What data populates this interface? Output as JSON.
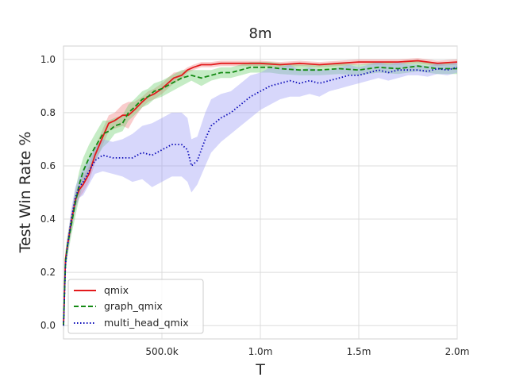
{
  "chart_data": {
    "type": "line",
    "title": "8m",
    "xlabel": "T",
    "ylabel": "Test Win Rate %",
    "xlim": [
      0,
      2000000
    ],
    "ylim": [
      -0.05,
      1.05
    ],
    "x_ticks": [
      {
        "value": 500000,
        "label": "500.0k"
      },
      {
        "value": 1000000,
        "label": "1.0m"
      },
      {
        "value": 1500000,
        "label": "1.5m"
      },
      {
        "value": 2000000,
        "label": "2.0m"
      }
    ],
    "y_ticks": [
      {
        "value": 0.0,
        "label": "0.0"
      },
      {
        "value": 0.2,
        "label": "0.2"
      },
      {
        "value": 0.4,
        "label": "0.4"
      },
      {
        "value": 0.6,
        "label": "0.6"
      },
      {
        "value": 0.8,
        "label": "0.8"
      },
      {
        "value": 1.0,
        "label": "1.0"
      }
    ],
    "grid": true,
    "legend_position": "lower-left",
    "series": [
      {
        "name": "qmix",
        "color": "#e31a1c",
        "dash": "solid",
        "band_color": "#f08080",
        "points": [
          [
            0,
            0.0
          ],
          [
            10000,
            0.25
          ],
          [
            20000,
            0.3
          ],
          [
            40000,
            0.39
          ],
          [
            60000,
            0.47
          ],
          [
            80000,
            0.51
          ],
          [
            100000,
            0.53
          ],
          [
            130000,
            0.57
          ],
          [
            160000,
            0.64
          ],
          [
            200000,
            0.71
          ],
          [
            230000,
            0.76
          ],
          [
            260000,
            0.77
          ],
          [
            300000,
            0.79
          ],
          [
            330000,
            0.79
          ],
          [
            360000,
            0.81
          ],
          [
            400000,
            0.84
          ],
          [
            430000,
            0.86
          ],
          [
            460000,
            0.87
          ],
          [
            500000,
            0.89
          ],
          [
            530000,
            0.91
          ],
          [
            560000,
            0.93
          ],
          [
            600000,
            0.94
          ],
          [
            630000,
            0.96
          ],
          [
            660000,
            0.97
          ],
          [
            700000,
            0.98
          ],
          [
            750000,
            0.98
          ],
          [
            800000,
            0.985
          ],
          [
            900000,
            0.985
          ],
          [
            1000000,
            0.985
          ],
          [
            1100000,
            0.98
          ],
          [
            1200000,
            0.985
          ],
          [
            1300000,
            0.98
          ],
          [
            1400000,
            0.985
          ],
          [
            1500000,
            0.99
          ],
          [
            1600000,
            0.99
          ],
          [
            1700000,
            0.99
          ],
          [
            1800000,
            0.995
          ],
          [
            1900000,
            0.985
          ],
          [
            2000000,
            0.99
          ]
        ],
        "band": [
          0.02,
          0.03,
          0.03,
          0.03,
          0.03,
          0.03,
          0.03,
          0.03,
          0.03,
          0.03,
          0.03,
          0.03,
          0.04,
          0.05,
          0.03,
          0.02,
          0.02,
          0.02,
          0.02,
          0.02,
          0.02,
          0.015,
          0.01,
          0.01,
          0.01,
          0.01,
          0.01,
          0.01,
          0.01,
          0.01,
          0.01,
          0.01,
          0.01,
          0.01,
          0.01,
          0.01,
          0.01,
          0.01,
          0.01
        ]
      },
      {
        "name": "graph_qmix",
        "color": "#138a13",
        "dash": "dashed",
        "band_color": "#6fcf6f",
        "points": [
          [
            0,
            0.0
          ],
          [
            10000,
            0.24
          ],
          [
            20000,
            0.3
          ],
          [
            40000,
            0.38
          ],
          [
            60000,
            0.46
          ],
          [
            80000,
            0.53
          ],
          [
            100000,
            0.58
          ],
          [
            130000,
            0.63
          ],
          [
            160000,
            0.67
          ],
          [
            200000,
            0.72
          ],
          [
            230000,
            0.73
          ],
          [
            260000,
            0.75
          ],
          [
            300000,
            0.76
          ],
          [
            330000,
            0.8
          ],
          [
            360000,
            0.82
          ],
          [
            400000,
            0.85
          ],
          [
            430000,
            0.86
          ],
          [
            460000,
            0.88
          ],
          [
            500000,
            0.89
          ],
          [
            550000,
            0.91
          ],
          [
            600000,
            0.93
          ],
          [
            650000,
            0.94
          ],
          [
            700000,
            0.93
          ],
          [
            750000,
            0.94
          ],
          [
            800000,
            0.95
          ],
          [
            850000,
            0.95
          ],
          [
            900000,
            0.96
          ],
          [
            950000,
            0.97
          ],
          [
            1000000,
            0.97
          ],
          [
            1050000,
            0.97
          ],
          [
            1100000,
            0.965
          ],
          [
            1200000,
            0.96
          ],
          [
            1300000,
            0.96
          ],
          [
            1400000,
            0.965
          ],
          [
            1500000,
            0.96
          ],
          [
            1600000,
            0.97
          ],
          [
            1700000,
            0.965
          ],
          [
            1800000,
            0.975
          ],
          [
            1900000,
            0.965
          ],
          [
            2000000,
            0.965
          ]
        ],
        "band": [
          0.02,
          0.04,
          0.04,
          0.04,
          0.05,
          0.05,
          0.05,
          0.05,
          0.05,
          0.05,
          0.04,
          0.03,
          0.03,
          0.03,
          0.03,
          0.03,
          0.03,
          0.03,
          0.03,
          0.03,
          0.03,
          0.02,
          0.03,
          0.02,
          0.02,
          0.02,
          0.02,
          0.02,
          0.02,
          0.02,
          0.02,
          0.02,
          0.02,
          0.02,
          0.02,
          0.02,
          0.02,
          0.02,
          0.02,
          0.02
        ]
      },
      {
        "name": "multi_head_qmix",
        "color": "#0a0ab8",
        "dash": "dotted",
        "band_color": "#9a9af5",
        "points": [
          [
            0,
            0.0
          ],
          [
            10000,
            0.23
          ],
          [
            20000,
            0.3
          ],
          [
            40000,
            0.4
          ],
          [
            60000,
            0.48
          ],
          [
            80000,
            0.52
          ],
          [
            100000,
            0.54
          ],
          [
            130000,
            0.58
          ],
          [
            160000,
            0.62
          ],
          [
            200000,
            0.64
          ],
          [
            250000,
            0.63
          ],
          [
            300000,
            0.63
          ],
          [
            350000,
            0.63
          ],
          [
            400000,
            0.65
          ],
          [
            450000,
            0.64
          ],
          [
            500000,
            0.66
          ],
          [
            550000,
            0.68
          ],
          [
            600000,
            0.68
          ],
          [
            630000,
            0.66
          ],
          [
            650000,
            0.6
          ],
          [
            680000,
            0.62
          ],
          [
            720000,
            0.7
          ],
          [
            750000,
            0.75
          ],
          [
            800000,
            0.78
          ],
          [
            850000,
            0.8
          ],
          [
            900000,
            0.83
          ],
          [
            950000,
            0.86
          ],
          [
            1000000,
            0.88
          ],
          [
            1050000,
            0.9
          ],
          [
            1100000,
            0.91
          ],
          [
            1150000,
            0.92
          ],
          [
            1200000,
            0.91
          ],
          [
            1250000,
            0.92
          ],
          [
            1300000,
            0.91
          ],
          [
            1350000,
            0.92
          ],
          [
            1400000,
            0.93
          ],
          [
            1450000,
            0.94
          ],
          [
            1500000,
            0.94
          ],
          [
            1550000,
            0.95
          ],
          [
            1600000,
            0.96
          ],
          [
            1650000,
            0.95
          ],
          [
            1700000,
            0.96
          ],
          [
            1750000,
            0.96
          ],
          [
            1800000,
            0.96
          ],
          [
            1850000,
            0.955
          ],
          [
            1900000,
            0.965
          ],
          [
            1950000,
            0.96
          ],
          [
            2000000,
            0.97
          ]
        ],
        "band": [
          0.02,
          0.03,
          0.03,
          0.04,
          0.04,
          0.04,
          0.05,
          0.05,
          0.05,
          0.06,
          0.06,
          0.07,
          0.09,
          0.1,
          0.12,
          0.12,
          0.12,
          0.12,
          0.12,
          0.1,
          0.09,
          0.1,
          0.1,
          0.09,
          0.08,
          0.08,
          0.08,
          0.07,
          0.07,
          0.06,
          0.06,
          0.05,
          0.05,
          0.05,
          0.04,
          0.04,
          0.04,
          0.03,
          0.03,
          0.03,
          0.03,
          0.03,
          0.02,
          0.02,
          0.02,
          0.02,
          0.02,
          0.02
        ]
      }
    ]
  }
}
